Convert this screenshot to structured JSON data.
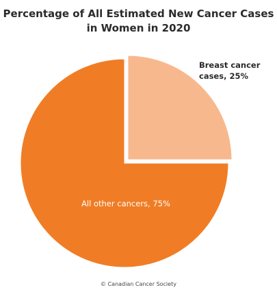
{
  "chart_data": {
    "type": "pie",
    "title_lines": [
      "Percentage of All Estimated New Cancer Cases",
      "in Women in 2020"
    ],
    "slices": [
      {
        "label_lines": [
          "Breast cancer",
          "cases, 25%"
        ],
        "value": 25,
        "color": "#f8b88e",
        "exploded": true
      },
      {
        "label_lines": [
          "All other cancers, 75%"
        ],
        "value": 75,
        "color": "#f07d25",
        "exploded": false
      }
    ],
    "legend": "none",
    "credit": "© Canadian Cancer Society"
  }
}
